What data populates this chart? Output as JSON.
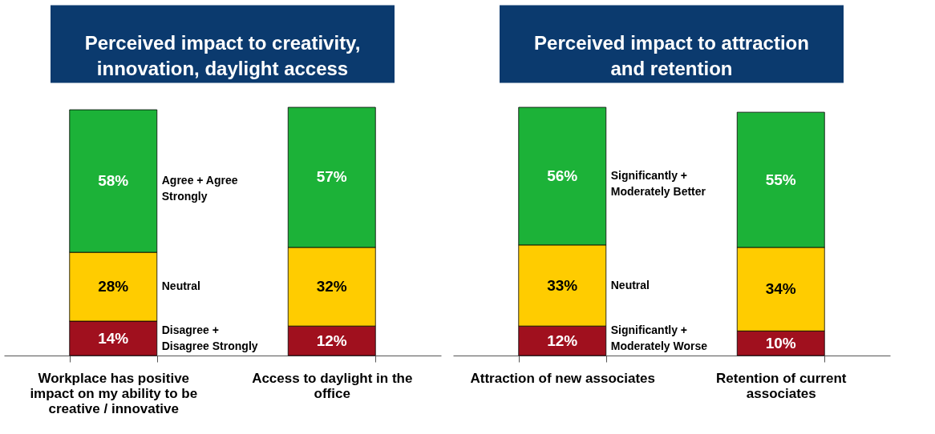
{
  "chart_data": [
    {
      "type": "bar",
      "stacked": true,
      "title": "Perceived impact to creativity, innovation, daylight access",
      "categories": [
        "Workplace has positive impact on my ability to be creative / innovative",
        "Access to daylight in the office"
      ],
      "series": [
        {
          "name": "Disagree + Disagree Strongly",
          "color": "#a0101e",
          "values": [
            14,
            12
          ],
          "value_labels": [
            "14%",
            "12%"
          ]
        },
        {
          "name": "Neutral",
          "color": "#ffcc00",
          "values": [
            28,
            32
          ],
          "value_labels": [
            "28%",
            "32%"
          ]
        },
        {
          "name": "Agree + Agree Strongly",
          "color": "#1cb238",
          "values": [
            58,
            57
          ],
          "value_labels": [
            "58%",
            "57%"
          ]
        }
      ]
    },
    {
      "type": "bar",
      "stacked": true,
      "title": "Perceived impact to attraction and retention",
      "categories": [
        "Attraction of new associates",
        "Retention of current associates"
      ],
      "series": [
        {
          "name": "Significantly + Moderately Worse",
          "color": "#a0101e",
          "values": [
            12,
            10
          ],
          "value_labels": [
            "12%",
            "10%"
          ]
        },
        {
          "name": "Neutral",
          "color": "#ffcc00",
          "values": [
            33,
            34
          ],
          "value_labels": [
            "33%",
            "34%"
          ]
        },
        {
          "name": "Significantly + Moderately Better",
          "color": "#1cb238",
          "values": [
            56,
            55
          ],
          "value_labels": [
            "56%",
            "55%"
          ]
        }
      ]
    }
  ]
}
